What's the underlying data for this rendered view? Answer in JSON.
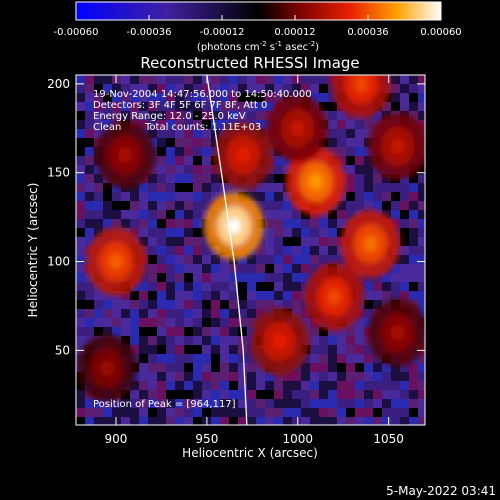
{
  "chart_data": {
    "type": "heatmap",
    "title": "Reconstructed RHESSI Image",
    "xlabel": "Heliocentric X (arcsec)",
    "ylabel": "Heliocentric Y (arcsec)",
    "xlim": [
      878,
      1070
    ],
    "ylim": [
      8,
      205
    ],
    "x_ticks": [
      900,
      950,
      1000,
      1050
    ],
    "y_ticks": [
      50,
      100,
      150,
      200
    ],
    "colorbar": {
      "range": [
        -0.0006,
        0.0006
      ],
      "ticks": [
        "-0.00060",
        "-0.00036",
        "-0.00012",
        "0.00012",
        "0.00036",
        "0.00060"
      ],
      "unit_prefix": "(photons cm",
      "unit_sup1": "-2",
      "unit_mid": " s",
      "unit_sup2": "-1",
      "unit_mid2": " asec",
      "unit_sup3": "-2",
      "unit_suffix": ")"
    },
    "annotations": {
      "time": "19-Nov-2004 14:47:56.000 to 14:50:40.000",
      "detectors": "Detectors: 3F 4F 5F 6F 7F 8F, Att 0",
      "energy": "Energy Range: 12.0 - 25.0 keV",
      "clean": "Clean",
      "counts": "Total counts: 1.11E+03",
      "peak": "Position of Peak = [964,117]"
    },
    "peak": [
      964,
      117
    ],
    "limb_curve": [
      [
        950,
        205
      ],
      [
        958,
        150
      ],
      [
        965,
        100
      ],
      [
        970,
        50
      ],
      [
        972,
        8
      ]
    ],
    "bright_regions": [
      {
        "x": 965,
        "y": 120,
        "value": 0.0006
      },
      {
        "x": 1010,
        "y": 145,
        "value": 0.00045
      },
      {
        "x": 1040,
        "y": 110,
        "value": 0.0004
      },
      {
        "x": 900,
        "y": 100,
        "value": 0.00038
      },
      {
        "x": 1020,
        "y": 80,
        "value": 0.00035
      },
      {
        "x": 1000,
        "y": 175,
        "value": 0.00025
      },
      {
        "x": 1055,
        "y": 165,
        "value": 0.00025
      },
      {
        "x": 990,
        "y": 55,
        "value": 0.0003
      },
      {
        "x": 1055,
        "y": 60,
        "value": 0.0002
      },
      {
        "x": 895,
        "y": 40,
        "value": 0.00018
      },
      {
        "x": 970,
        "y": 160,
        "value": 0.0003
      },
      {
        "x": 1035,
        "y": 200,
        "value": 0.00035
      },
      {
        "x": 905,
        "y": 160,
        "value": 0.0002
      }
    ]
  },
  "timestamp": "5-May-2022 03:41"
}
